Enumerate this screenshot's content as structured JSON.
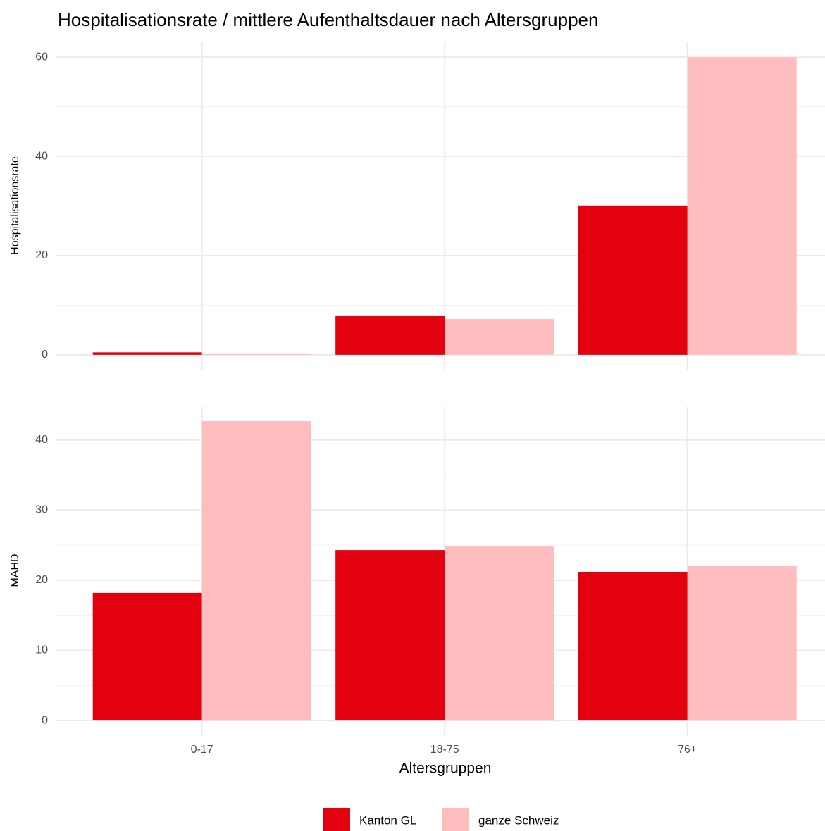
{
  "chart_data": [
    {
      "type": "bar",
      "title": "Hospitalisationsrate / mittlere Aufenthaltsdauer nach Altersgruppen",
      "y_label": "Hospitalisationsrate",
      "categories": [
        "0-17",
        "18-75",
        "76+"
      ],
      "series": [
        {
          "name": "Kanton GL",
          "color": "#e3000f",
          "values": [
            0.5,
            7.8,
            30.1
          ]
        },
        {
          "name": "ganze Schweiz",
          "color": "#ffbdbf",
          "values": [
            0.3,
            7.2,
            60
          ]
        }
      ],
      "ylim": [
        -3,
        63
      ],
      "yticks": [
        0,
        20,
        40,
        60
      ],
      "grid": true
    },
    {
      "type": "bar",
      "x_label": "Altersgruppen",
      "y_label": "MAHD",
      "categories": [
        "0-17",
        "18-75",
        "76+"
      ],
      "series": [
        {
          "name": "Kanton GL",
          "color": "#e3000f",
          "values": [
            18.2,
            24.3,
            21.2
          ]
        },
        {
          "name": "ganze Schweiz",
          "color": "#ffbdbf",
          "values": [
            42.7,
            24.8,
            22.1
          ]
        }
      ],
      "ylim": [
        -2.2,
        44.7
      ],
      "yticks": [
        0,
        10,
        20,
        30,
        40
      ],
      "grid": true
    }
  ]
}
